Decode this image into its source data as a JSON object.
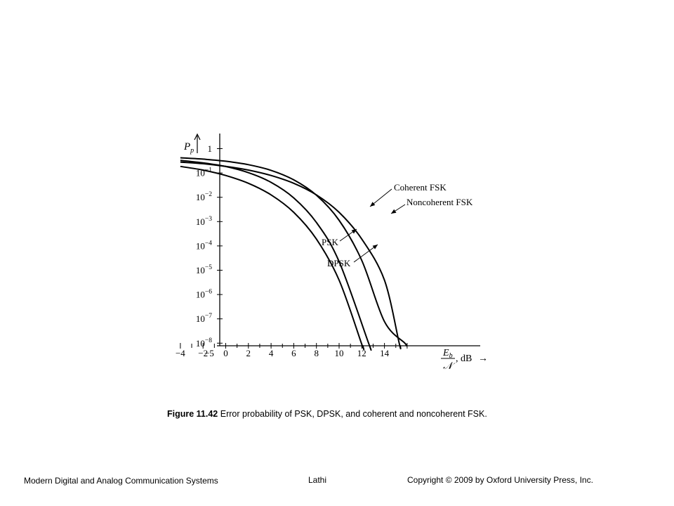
{
  "figure": {
    "caption_label": "Figure 11.42",
    "caption_text": "Error probability of PSK, DPSK, and coherent and noncoherent FSK."
  },
  "footer": {
    "left": "Modern Digital and Analog Communication Systems",
    "center": "Lathi",
    "right": "Copyright © 2009 by Oxford University Press, Inc."
  },
  "chart_data": {
    "type": "line",
    "y_scale": "log",
    "x_range": [
      -5,
      18
    ],
    "y_range": [
      1e-08,
      1
    ],
    "ylabel_main": "P",
    "ylabel_sub": "p",
    "x_ticks": [
      {
        "value": -5,
        "label": "−5"
      },
      {
        "value": -4,
        "label": "−4"
      },
      {
        "value": -2,
        "label": "−2"
      },
      {
        "value": 0,
        "label": "0"
      },
      {
        "value": 2,
        "label": "2"
      },
      {
        "value": 4,
        "label": "4"
      },
      {
        "value": 6,
        "label": "6"
      },
      {
        "value": 8,
        "label": "8"
      },
      {
        "value": 10,
        "label": "10"
      },
      {
        "value": 12,
        "label": "12"
      },
      {
        "value": 14,
        "label": "14"
      }
    ],
    "y_ticks": [
      {
        "value": 1,
        "base": "1",
        "exp": ""
      },
      {
        "value": 0.1,
        "base": "10",
        "exp": "−1"
      },
      {
        "value": 0.01,
        "base": "10",
        "exp": "−2"
      },
      {
        "value": 0.001,
        "base": "10",
        "exp": "−3"
      },
      {
        "value": 0.0001,
        "base": "10",
        "exp": "−4"
      },
      {
        "value": 1e-05,
        "base": "10",
        "exp": "−5"
      },
      {
        "value": 1e-06,
        "base": "10",
        "exp": "−6"
      },
      {
        "value": 1e-07,
        "base": "10",
        "exp": "−7"
      },
      {
        "value": 1e-08,
        "base": "10",
        "exp": "−8"
      }
    ],
    "x_axis_label": {
      "num": "E",
      "num_sub": "b",
      "den": "𝒩",
      "unit": ", dB",
      "arrow": "→"
    },
    "series": [
      {
        "name": "PSK",
        "x": [
          -4,
          -2,
          0,
          2,
          4,
          6,
          8,
          10,
          12
        ],
        "y": [
          0.186,
          0.131,
          0.0786,
          0.0375,
          0.0125,
          0.0024,
          0.000191,
          3.9e-06,
          9e-09
        ]
      },
      {
        "name": "DPSK",
        "x": [
          -4,
          -2,
          0,
          2,
          4,
          6,
          8,
          10,
          12.6
        ],
        "y": [
          0.33,
          0.26,
          0.184,
          0.103,
          0.041,
          0.0094,
          0.00092,
          2.27e-05,
          1e-08
        ]
      },
      {
        "name": "Coherent FSK",
        "x": [
          -4,
          -2,
          0,
          2,
          4,
          6,
          8,
          10,
          12,
          14,
          15.3
        ],
        "y": [
          0.281,
          0.24,
          0.186,
          0.131,
          0.0786,
          0.0375,
          0.0125,
          0.0024,
          0.000191,
          3.9e-06,
          1e-08
        ]
      },
      {
        "name": "Noncoherent FSK",
        "x": [
          -4,
          -2,
          0,
          2,
          4,
          6,
          8,
          10,
          12,
          14,
          15.8
        ],
        "y": [
          0.42,
          0.37,
          0.303,
          0.219,
          0.128,
          0.0521,
          0.0121,
          0.00113,
          2.52e-05,
          7.7e-08,
          1e-08
        ]
      }
    ],
    "annotations": [
      {
        "text": "PSK",
        "target_series": "PSK"
      },
      {
        "text": "DPSK",
        "target_series": "DPSK"
      },
      {
        "text": "Coherent FSK",
        "target_series": "Coherent FSK"
      },
      {
        "text": "Noncoherent FSK",
        "target_series": "Noncoherent FSK"
      }
    ]
  }
}
